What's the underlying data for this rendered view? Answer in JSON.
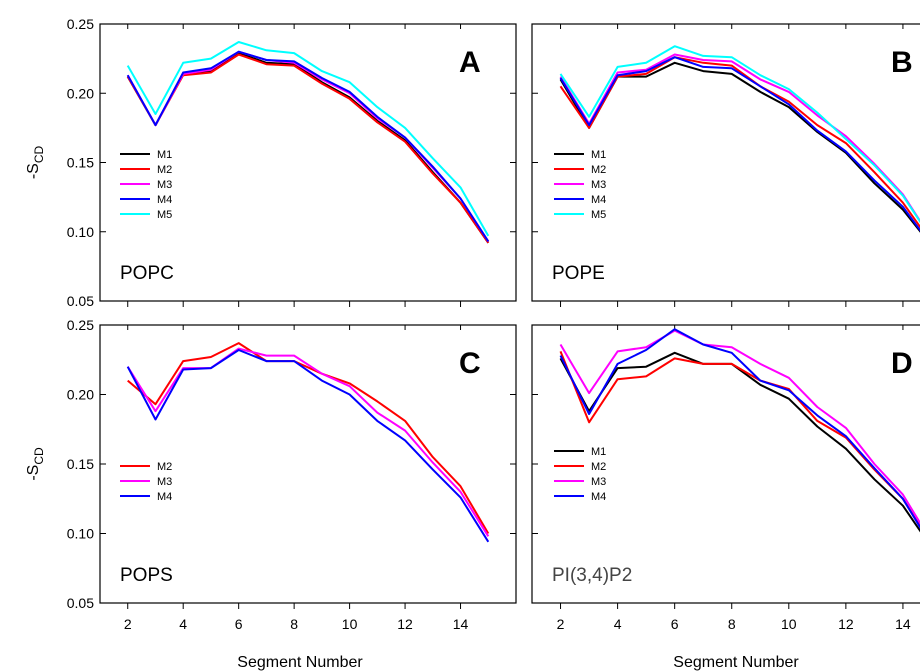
{
  "chart_data": {
    "type": "line",
    "y_axis_title": "-S",
    "y_axis_title_sub": "CD",
    "x_axis_title": "Segment Number",
    "y_ticks": [
      "0.05",
      "0.10",
      "0.15",
      "0.20",
      "0.25"
    ],
    "x_ticks": [
      "2",
      "4",
      "6",
      "8",
      "10",
      "12",
      "14"
    ],
    "ylim": [
      0.05,
      0.25
    ],
    "xlim": [
      1,
      16
    ],
    "x": [
      2,
      3,
      4,
      5,
      6,
      7,
      8,
      9,
      10,
      11,
      12,
      13,
      14,
      15
    ],
    "colors": {
      "M1": "#000000",
      "M2": "#ff0000",
      "M3": "#ff00ff",
      "M4": "#0000ff",
      "M5": "#00ffff"
    },
    "panels": [
      {
        "letter": "A",
        "lipid": "POPC",
        "lipid_color": "#000000",
        "series": [
          {
            "name": "M1",
            "values": [
              0.212,
              0.177,
              0.214,
              0.216,
              0.229,
              0.222,
              0.221,
              0.208,
              0.197,
              0.18,
              0.166,
              0.143,
              0.121,
              0.092
            ]
          },
          {
            "name": "M2",
            "values": [
              0.212,
              0.177,
              0.213,
              0.215,
              0.228,
              0.221,
              0.22,
              0.207,
              0.196,
              0.179,
              0.165,
              0.142,
              0.121,
              0.092
            ]
          },
          {
            "name": "M3",
            "values": [
              0.213,
              0.177,
              0.214,
              0.217,
              0.23,
              0.224,
              0.222,
              0.21,
              0.2,
              0.182,
              0.168,
              0.146,
              0.124,
              0.093
            ]
          },
          {
            "name": "M4",
            "values": [
              0.213,
              0.177,
              0.215,
              0.218,
              0.23,
              0.224,
              0.223,
              0.211,
              0.201,
              0.183,
              0.168,
              0.147,
              0.124,
              0.093
            ]
          },
          {
            "name": "M5",
            "values": [
              0.22,
              0.185,
              0.222,
              0.225,
              0.237,
              0.231,
              0.229,
              0.216,
              0.208,
              0.19,
              0.175,
              0.153,
              0.132,
              0.097
            ]
          }
        ]
      },
      {
        "letter": "B",
        "lipid": "POPE",
        "lipid_color": "#000000",
        "series": [
          {
            "name": "M1",
            "values": [
              0.21,
              0.175,
              0.212,
              0.212,
              0.222,
              0.216,
              0.214,
              0.201,
              0.19,
              0.172,
              0.157,
              0.135,
              0.116,
              0.09
            ]
          },
          {
            "name": "M2",
            "values": [
              0.205,
              0.175,
              0.212,
              0.214,
              0.226,
              0.222,
              0.22,
              0.205,
              0.194,
              0.177,
              0.164,
              0.143,
              0.121,
              0.092
            ]
          },
          {
            "name": "M3",
            "values": [
              0.212,
              0.178,
              0.215,
              0.217,
              0.228,
              0.224,
              0.223,
              0.21,
              0.201,
              0.184,
              0.169,
              0.149,
              0.127,
              0.095
            ]
          },
          {
            "name": "M4",
            "values": [
              0.211,
              0.177,
              0.213,
              0.216,
              0.226,
              0.219,
              0.218,
              0.205,
              0.192,
              0.173,
              0.158,
              0.137,
              0.118,
              0.09
            ]
          },
          {
            "name": "M5",
            "values": [
              0.214,
              0.183,
              0.219,
              0.222,
              0.234,
              0.227,
              0.226,
              0.213,
              0.203,
              0.186,
              0.167,
              0.148,
              0.126,
              0.095
            ]
          }
        ]
      },
      {
        "letter": "C",
        "lipid": "POPS",
        "lipid_color": "#000000",
        "series": [
          {
            "name": "M2",
            "values": [
              0.21,
              0.193,
              0.224,
              0.227,
              0.237,
              0.224,
              0.224,
              0.215,
              0.208,
              0.195,
              0.181,
              0.155,
              0.134,
              0.1
            ]
          },
          {
            "name": "M3",
            "values": [
              0.22,
              0.188,
              0.219,
              0.219,
              0.233,
              0.228,
              0.228,
              0.215,
              0.206,
              0.187,
              0.174,
              0.151,
              0.13,
              0.098
            ]
          },
          {
            "name": "M4",
            "values": [
              0.22,
              0.182,
              0.218,
              0.219,
              0.232,
              0.224,
              0.224,
              0.21,
              0.2,
              0.181,
              0.167,
              0.146,
              0.126,
              0.094
            ]
          }
        ]
      },
      {
        "letter": "D",
        "lipid": "PI(3,4)P2",
        "lipid_color": "#444444",
        "series": [
          {
            "name": "M1",
            "values": [
              0.226,
              0.188,
              0.219,
              0.22,
              0.23,
              0.222,
              0.222,
              0.207,
              0.197,
              0.177,
              0.161,
              0.139,
              0.12,
              0.09
            ]
          },
          {
            "name": "M2",
            "values": [
              0.231,
              0.18,
              0.211,
              0.213,
              0.226,
              0.222,
              0.222,
              0.21,
              0.204,
              0.181,
              0.169,
              0.146,
              0.125,
              0.092
            ]
          },
          {
            "name": "M3",
            "values": [
              0.236,
              0.201,
              0.231,
              0.234,
              0.246,
              0.236,
              0.234,
              0.222,
              0.212,
              0.191,
              0.176,
              0.15,
              0.128,
              0.094
            ]
          },
          {
            "name": "M4",
            "values": [
              0.228,
              0.186,
              0.222,
              0.232,
              0.247,
              0.236,
              0.23,
              0.21,
              0.203,
              0.185,
              0.17,
              0.147,
              0.125,
              0.091
            ]
          }
        ]
      }
    ]
  }
}
